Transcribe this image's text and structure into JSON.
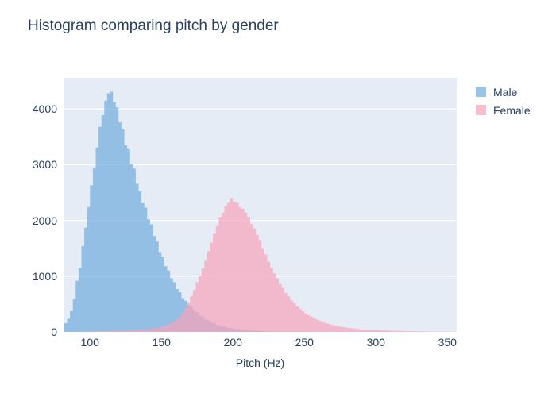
{
  "chart_data": {
    "type": "bar",
    "subtype": "overlaid-histogram",
    "title": "Histogram comparing pitch by gender",
    "xlabel": "Pitch (Hz)",
    "ylabel": "",
    "xlim": [
      81.5,
      356.5
    ],
    "ylim": [
      0,
      4560
    ],
    "xticks": [
      100,
      150,
      200,
      250,
      300,
      350
    ],
    "yticks": [
      0,
      1000,
      2000,
      3000,
      4000
    ],
    "grid": true,
    "legend_position": "top-right",
    "plot_bg": "#e5ecf6",
    "grid_color": "#ffffff",
    "text_color": "#2a3f5f",
    "bar_opacity": 0.72,
    "bin_start": 82,
    "bin_width": 2,
    "series": [
      {
        "name": "Male",
        "color": "#73addc",
        "counts": [
          155,
          235,
          370,
          585,
          915,
          1150,
          1540,
          1870,
          2240,
          2630,
          2940,
          3310,
          3680,
          3890,
          4150,
          4280,
          4310,
          4120,
          4030,
          3760,
          3640,
          3350,
          3280,
          3010,
          2930,
          2660,
          2530,
          2310,
          2230,
          2020,
          1930,
          1720,
          1620,
          1420,
          1340,
          1180,
          1100,
          960,
          890,
          770,
          710,
          605,
          560,
          480,
          450,
          380,
          350,
          290,
          268,
          225,
          208,
          170,
          154,
          126,
          120,
          96,
          90,
          72,
          68,
          54,
          46,
          44,
          34,
          32,
          24,
          24,
          17,
          16,
          14,
          11,
          10,
          8,
          7,
          5,
          5,
          4,
          3,
          3,
          2,
          2,
          2,
          1,
          1,
          1,
          1,
          1,
          0,
          0,
          0,
          0,
          0,
          0,
          0,
          0,
          0,
          0,
          0,
          0,
          0,
          0,
          0,
          0,
          0,
          0,
          0,
          0,
          0,
          0,
          0,
          0,
          0,
          0,
          0,
          0,
          0,
          0,
          0,
          0,
          0,
          0,
          0,
          0,
          0,
          0,
          0,
          0,
          0,
          0,
          0,
          0,
          0,
          0,
          0,
          0,
          0,
          0,
          0
        ]
      },
      {
        "name": "Female",
        "color": "#f7a4ba",
        "counts": [
          0,
          0,
          0,
          0,
          2,
          2,
          3,
          4,
          5,
          6,
          7,
          9,
          10,
          12,
          14,
          15,
          17,
          18,
          20,
          21,
          22,
          24,
          25,
          27,
          28,
          30,
          33,
          36,
          40,
          45,
          52,
          60,
          68,
          80,
          95,
          112,
          132,
          158,
          188,
          225,
          272,
          335,
          425,
          525,
          645,
          755,
          890,
          1000,
          1140,
          1280,
          1450,
          1600,
          1760,
          1900,
          2060,
          2140,
          2260,
          2320,
          2390,
          2340,
          2315,
          2240,
          2210,
          2140,
          2060,
          1940,
          1860,
          1740,
          1650,
          1500,
          1390,
          1260,
          1150,
          1050,
          960,
          860,
          790,
          700,
          640,
          565,
          520,
          460,
          418,
          370,
          335,
          298,
          274,
          240,
          220,
          195,
          178,
          156,
          146,
          128,
          118,
          105,
          96,
          85,
          78,
          70,
          65,
          57,
          53,
          46,
          44,
          40,
          38,
          34,
          32,
          30,
          28,
          26,
          24,
          22,
          20,
          19,
          17,
          16,
          14,
          13,
          12,
          11,
          10,
          9,
          8,
          8,
          7,
          6,
          6,
          5,
          5,
          4,
          4,
          3,
          3,
          2,
          2
        ]
      }
    ]
  }
}
